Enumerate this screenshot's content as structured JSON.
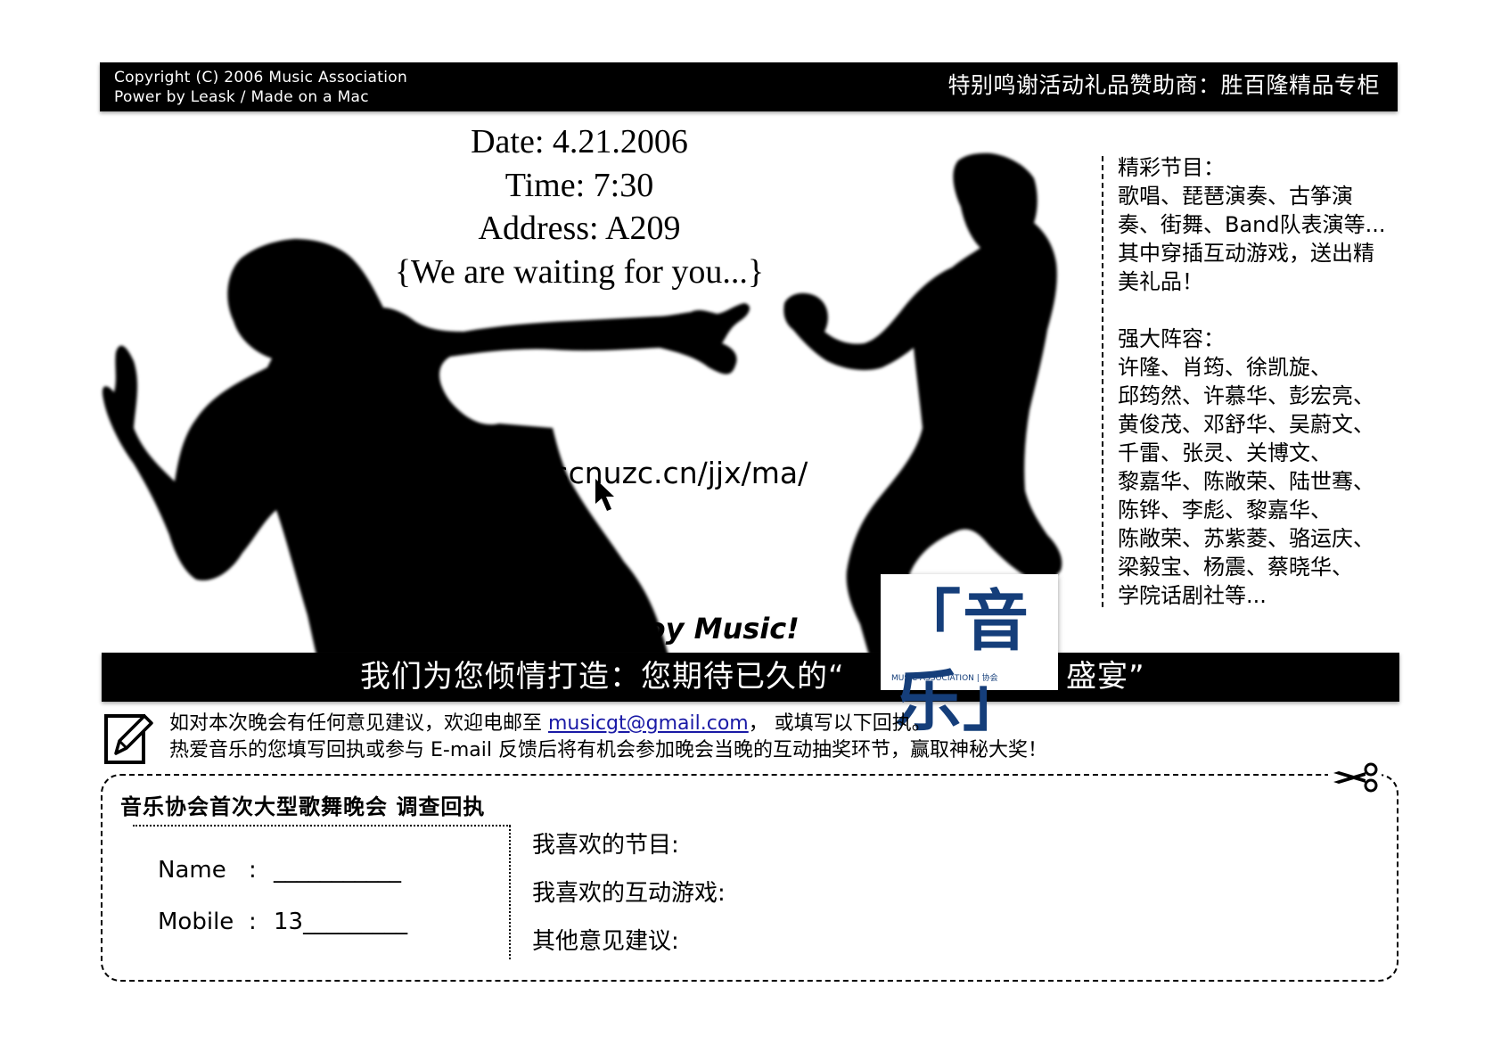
{
  "header": {
    "copyright": "Copyright (C) 2006 Music Association",
    "power": "Power by Leask / Made on a Mac",
    "sponsor": "特别鸣谢活动礼品赞助商：胜百隆精品专柜"
  },
  "event": {
    "date": "Date: 4.21.2006",
    "time": "Time: 7:30",
    "address": "Address: A209",
    "tagline": "{We are waiting for you...}"
  },
  "url": "www.scnuzc.cn/jjx/ma/",
  "enjoy": "Enjoy Music!",
  "sidebar": {
    "programs_title": "精彩节目：",
    "programs_lines": [
      "歌唱、琵琶演奏、古筝演",
      "奏、街舞、Band队表演等...",
      "其中穿插互动游戏，送出精",
      "美礼品！"
    ],
    "lineup_title": "强大阵容：",
    "lineup_lines": [
      "许隆、肖筠、徐凯旋、",
      "邱筠然、许慕华、彭宏亮、",
      "黄俊茂、邓舒华、吴蔚文、",
      "千雷、张灵、关博文、",
      "黎嘉华、陈敞荣、陆世骞、",
      "陈铧、李彪、黎嘉华、",
      "陈敞荣、苏紫菱、骆运庆、",
      "梁毅宝、杨震、蔡晓华、",
      "学院话剧社等..."
    ]
  },
  "banner": {
    "slogan_before": "我们为您倾情打造：您期待已久的“",
    "slogan_after": "盛宴”"
  },
  "logo": {
    "text": "「音乐」",
    "subtext": "MUSIC ASSOCIATION | 协会"
  },
  "notice": {
    "line1_before": "如对本次晚会有任何意见建议，欢迎电邮至 ",
    "email": "musicgt@gmail.com",
    "line1_after": "， 或填写以下回执。",
    "line2": "热爱音乐的您填写回执或参与 E-mail 反馈后将有机会参加晚会当晚的互动抽奖环节，赢取神秘大奖！"
  },
  "form": {
    "title": "音乐协会首次大型歌舞晚会  调查回执",
    "name_label": "Name",
    "name_colon": ":",
    "name_value": "___________",
    "mobile_label": "Mobile",
    "mobile_colon": ":",
    "mobile_value": "13_________",
    "q1": "我喜欢的节目:",
    "q2": "我喜欢的互动游戏:",
    "q3": "其他意见建议:"
  },
  "icons": [
    "pencil-icon",
    "scissors-icon",
    "cursor-icon"
  ]
}
